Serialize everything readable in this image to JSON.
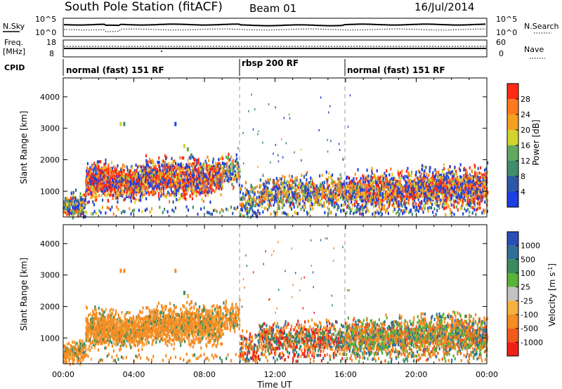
{
  "header": {
    "station": "South Pole Station (fitACF)",
    "beam": "Beam 01",
    "date": "16/Jul/2014"
  },
  "noise_panel": {
    "left_label": "N.Sky",
    "right_label": "N.Search",
    "left_ticks": [
      "10^5",
      "10^0"
    ],
    "right_ticks": [
      "10^5",
      "10^0"
    ]
  },
  "freq_panel": {
    "left_label_line1": "Freq.",
    "left_label_line2": "[MHz]",
    "right_label": "Nave",
    "left_ticks": [
      "18",
      "8"
    ],
    "right_ticks": [
      "60",
      "0"
    ]
  },
  "cpid": {
    "label": "CPID",
    "segments": [
      {
        "label": "normal (fast) 151 RF",
        "start_hour": 0,
        "end_hour": 10
      },
      {
        "label": "rbsp 200 RF",
        "start_hour": 10,
        "end_hour": 16
      },
      {
        "label": "normal (fast) 151 RF",
        "start_hour": 16,
        "end_hour": 24
      }
    ]
  },
  "chart_data": [
    {
      "type": "heatmap",
      "title": "",
      "xlabel": "Time UT",
      "ylabel": "Slant Range [km]",
      "x_range_hours": [
        0,
        24
      ],
      "x_ticks": [
        "00:00",
        "04:00",
        "08:00",
        "12:00",
        "16:00",
        "20:00",
        "00:00"
      ],
      "ylim": [
        180,
        4600
      ],
      "y_ticks": [
        1000,
        2000,
        3000,
        4000
      ],
      "colorbar": {
        "label": "Power [dB]",
        "range": [
          0,
          32
        ],
        "ticks": [
          "4",
          "8",
          "12",
          "16",
          "20",
          "24",
          "28"
        ],
        "colors": [
          "#1f3fe0",
          "#2e57a8",
          "#3e8d6c",
          "#62a860",
          "#d2d230",
          "#f5a020",
          "#ff7a1e",
          "#ff2a14"
        ]
      },
      "mode_change_hours": [
        10,
        16
      ]
    },
    {
      "type": "heatmap",
      "title": "",
      "xlabel": "Time UT",
      "ylabel": "Slant Range [km]",
      "x_range_hours": [
        0,
        24
      ],
      "x_ticks": [
        "00:00",
        "04:00",
        "08:00",
        "12:00",
        "16:00",
        "20:00",
        "00:00"
      ],
      "ylim": [
        180,
        4600
      ],
      "y_ticks": [
        1000,
        2000,
        3000,
        4000
      ],
      "colorbar": {
        "label": "Velocity [m s-1]",
        "ticks": [
          "1000",
          "500",
          "100",
          "25",
          "-25",
          "-100",
          "-500",
          "-1000"
        ],
        "colors": [
          "#2a4fb8",
          "#2f6e96",
          "#3a8c5f",
          "#57b43a",
          "#c2c2c2",
          "#f5b040",
          "#f58c24",
          "#f25a1c",
          "#ef2018"
        ]
      },
      "mode_change_hours": [
        10,
        16
      ]
    }
  ]
}
